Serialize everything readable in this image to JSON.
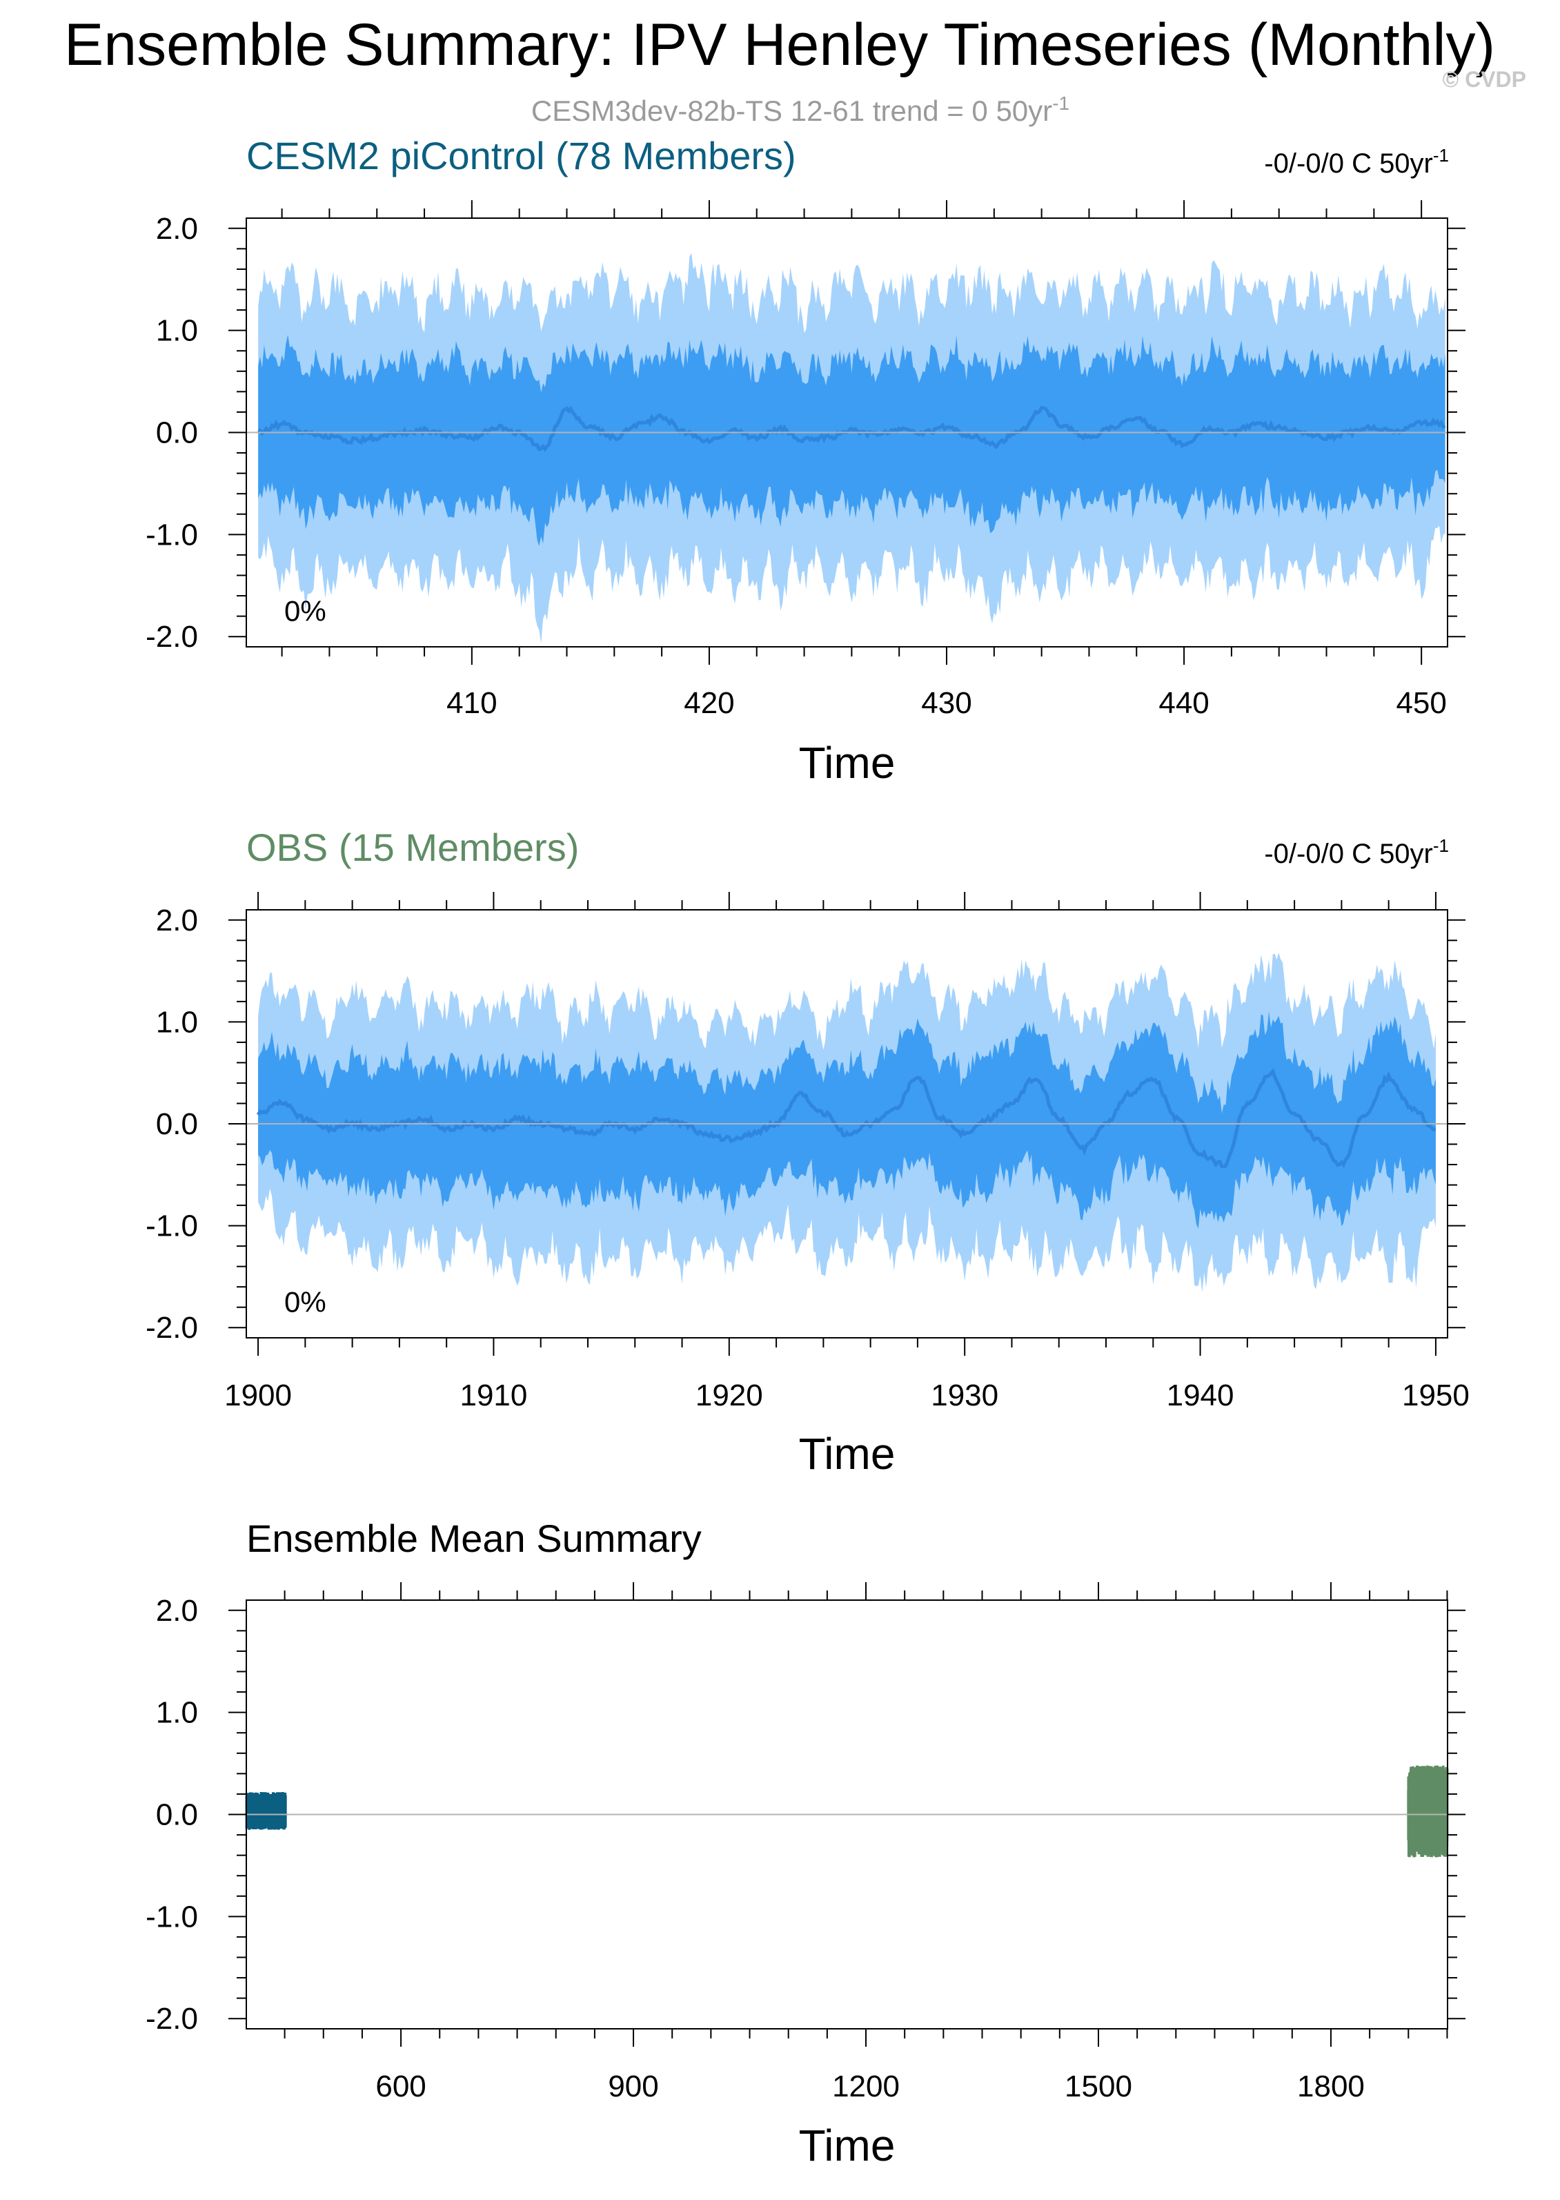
{
  "figure": {
    "title": "Ensemble Summary: IPV Henley Timeseries (Monthly)",
    "watermark": "© CVDP",
    "subtitle": "CESM3dev-82b-TS 12-61 trend = 0 50yr",
    "subtitle_sup": "-1"
  },
  "colors": {
    "band_outer": "#a6d3fb",
    "band_inner": "#3d9df2",
    "mean_line": "#2f86de",
    "cesm_color": "#0b5f80",
    "obs_color": "#5f8c64",
    "zero_line": "#b3b3b3",
    "axis": "#000000",
    "subtitle": "#9a9a9a",
    "watermark": "#c8c8c8"
  },
  "chart_data": [
    {
      "type": "area",
      "id": "cesm",
      "title": "CESM2 piControl (78 Members)",
      "trend_label": "-0/-0/0 C 50yr",
      "trend_sup": "-1",
      "percent_label": "0%",
      "xlabel": "Time",
      "ylabel": "",
      "xlim": [
        400.5,
        451.1
      ],
      "ylim": [
        -2.1,
        2.1
      ],
      "xticks": [
        410,
        420,
        430,
        440,
        450
      ],
      "xtick_labels": [
        "410",
        "420",
        "430",
        "440",
        "450"
      ],
      "yticks": [
        -2.0,
        -1.0,
        0.0,
        1.0,
        2.0
      ],
      "ytick_labels": [
        "-2.0",
        "-1.0",
        "0.0",
        "1.0",
        "2.0"
      ],
      "series": [
        {
          "name": "",
          "role": "ensemble mean (Jan)",
          "x": [
            401,
            402,
            403,
            404,
            405,
            406,
            407,
            408,
            409,
            410,
            411,
            412,
            413,
            414,
            415,
            416,
            417,
            418,
            419,
            420,
            421,
            422,
            423,
            424,
            425,
            426,
            427,
            428,
            429,
            430,
            431,
            432,
            433,
            434,
            435,
            436,
            437,
            438,
            439,
            440,
            441,
            442,
            443,
            444,
            445,
            446,
            447,
            448,
            449,
            450,
            451
          ],
          "values": [
            0.0,
            0.08,
            0.0,
            -0.05,
            -0.08,
            -0.05,
            0.0,
            0.02,
            -0.03,
            -0.05,
            0.05,
            0.0,
            -0.15,
            0.22,
            0.05,
            -0.05,
            0.08,
            0.15,
            0.0,
            -0.08,
            0.02,
            -0.05,
            0.03,
            -0.07,
            -0.05,
            0.02,
            -0.02,
            0.03,
            0.0,
            0.05,
            -0.03,
            -0.12,
            0.0,
            0.22,
            0.05,
            -0.05,
            0.05,
            0.15,
            0.0,
            -0.12,
            0.03,
            0.0,
            0.08,
            0.05,
            0.0,
            -0.05,
            0.0,
            0.05,
            0.0,
            0.1,
            0.08
          ]
        },
        {
          "name": "",
          "role": "ensemble max (Jan)",
          "x": [
            401,
            402,
            403,
            404,
            405,
            406,
            407,
            408,
            409,
            410,
            411,
            412,
            413,
            414,
            415,
            416,
            417,
            418,
            419,
            420,
            421,
            422,
            423,
            424,
            425,
            426,
            427,
            428,
            429,
            430,
            431,
            432,
            433,
            434,
            435,
            436,
            437,
            438,
            439,
            440,
            441,
            442,
            443,
            444,
            445,
            446,
            447,
            448,
            449,
            450,
            451
          ],
          "values": [
            1.5,
            1.62,
            1.45,
            1.55,
            1.3,
            1.5,
            1.55,
            1.35,
            1.6,
            1.45,
            1.35,
            1.55,
            1.3,
            1.45,
            1.6,
            1.55,
            1.45,
            1.5,
            1.7,
            1.6,
            1.55,
            1.4,
            1.6,
            1.35,
            1.5,
            1.6,
            1.4,
            1.55,
            1.45,
            1.5,
            1.6,
            1.5,
            1.55,
            1.45,
            1.55,
            1.45,
            1.5,
            1.55,
            1.45,
            1.4,
            1.6,
            1.5,
            1.55,
            1.4,
            1.5,
            1.45,
            1.4,
            1.55,
            1.5,
            1.3,
            1.45
          ]
        },
        {
          "name": "",
          "role": "ensemble min (Jan)",
          "x": [
            401,
            402,
            403,
            404,
            405,
            406,
            407,
            408,
            409,
            410,
            411,
            412,
            413,
            414,
            415,
            416,
            417,
            418,
            419,
            420,
            421,
            422,
            423,
            424,
            425,
            426,
            427,
            428,
            429,
            430,
            431,
            432,
            433,
            434,
            435,
            436,
            437,
            438,
            439,
            440,
            441,
            442,
            443,
            444,
            445,
            446,
            447,
            448,
            449,
            450,
            451
          ],
          "values": [
            -1.2,
            -1.5,
            -1.6,
            -1.55,
            -1.4,
            -1.5,
            -1.45,
            -1.55,
            -1.5,
            -1.45,
            -1.55,
            -1.6,
            -1.95,
            -1.5,
            -1.55,
            -1.45,
            -1.5,
            -1.55,
            -1.4,
            -1.5,
            -1.55,
            -1.55,
            -1.65,
            -1.45,
            -1.5,
            -1.55,
            -1.5,
            -1.45,
            -1.6,
            -1.45,
            -1.55,
            -1.85,
            -1.5,
            -1.6,
            -1.55,
            -1.45,
            -1.55,
            -1.5,
            -1.4,
            -1.5,
            -1.45,
            -1.55,
            -1.55,
            -1.5,
            -1.45,
            -1.5,
            -1.45,
            -1.4,
            -1.35,
            -1.5,
            -1.0
          ]
        }
      ]
    },
    {
      "type": "area",
      "id": "obs",
      "title": "OBS (15 Members)",
      "trend_label": "-0/-0/0 C 50yr",
      "trend_sup": "-1",
      "percent_label": "0%",
      "xlabel": "Time",
      "ylabel": "",
      "xlim": [
        1899.5,
        1950.5
      ],
      "ylim": [
        -2.1,
        2.1
      ],
      "xticks": [
        1900,
        1910,
        1920,
        1930,
        1940,
        1950
      ],
      "xtick_labels": [
        "1900",
        "1910",
        "1920",
        "1930",
        "1940",
        "1950"
      ],
      "yticks": [
        -2.0,
        -1.0,
        0.0,
        1.0,
        2.0
      ],
      "ytick_labels": [
        "-2.0",
        "-1.0",
        "0.0",
        "1.0",
        "2.0"
      ],
      "series": [
        {
          "name": "",
          "role": "ensemble mean (Jan)",
          "x": [
            1900,
            1901,
            1902,
            1903,
            1904,
            1905,
            1906,
            1907,
            1908,
            1909,
            1910,
            1911,
            1912,
            1913,
            1914,
            1915,
            1916,
            1917,
            1918,
            1919,
            1920,
            1921,
            1922,
            1923,
            1924,
            1925,
            1926,
            1927,
            1928,
            1929,
            1930,
            1931,
            1932,
            1933,
            1934,
            1935,
            1936,
            1937,
            1938,
            1939,
            1940,
            1941,
            1942,
            1943,
            1944,
            1945,
            1946,
            1947,
            1948,
            1949,
            1950
          ],
          "values": [
            0.1,
            0.2,
            0.05,
            -0.05,
            0.0,
            -0.05,
            0.0,
            0.05,
            -0.05,
            0.0,
            -0.05,
            0.05,
            0.0,
            -0.05,
            -0.1,
            0.0,
            -0.05,
            0.05,
            0.0,
            -0.1,
            -0.15,
            -0.1,
            0.0,
            0.3,
            0.1,
            -0.1,
            0.0,
            0.15,
            0.45,
            0.05,
            -0.1,
            0.05,
            0.2,
            0.45,
            0.05,
            -0.25,
            0.0,
            0.3,
            0.45,
            0.05,
            -0.3,
            -0.4,
            0.2,
            0.5,
            0.1,
            -0.15,
            -0.4,
            0.1,
            0.45,
            0.15,
            -0.05
          ]
        },
        {
          "name": "",
          "role": "ensemble max (Jan)",
          "x": [
            1900,
            1901,
            1902,
            1903,
            1904,
            1905,
            1906,
            1907,
            1908,
            1909,
            1910,
            1911,
            1912,
            1913,
            1914,
            1915,
            1916,
            1917,
            1918,
            1919,
            1920,
            1921,
            1922,
            1923,
            1924,
            1925,
            1926,
            1927,
            1928,
            1929,
            1930,
            1931,
            1932,
            1933,
            1934,
            1935,
            1936,
            1937,
            1938,
            1939,
            1940,
            1941,
            1942,
            1943,
            1944,
            1945,
            1946,
            1947,
            1948,
            1949,
            1950
          ],
          "values": [
            1.35,
            1.45,
            1.3,
            1.1,
            1.45,
            1.2,
            1.4,
            1.25,
            1.3,
            1.15,
            1.3,
            1.2,
            1.4,
            1.1,
            1.35,
            1.2,
            1.3,
            1.1,
            1.25,
            1.0,
            1.2,
            1.0,
            1.15,
            1.3,
            1.0,
            1.4,
            1.2,
            1.45,
            1.6,
            1.3,
            1.2,
            1.4,
            1.5,
            1.6,
            1.3,
            1.1,
            1.2,
            1.45,
            1.55,
            1.3,
            1.1,
            1.2,
            1.45,
            1.7,
            1.3,
            1.2,
            1.2,
            1.5,
            1.6,
            1.3,
            1.0
          ]
        },
        {
          "name": "",
          "role": "ensemble min (Jan)",
          "x": [
            1900,
            1901,
            1902,
            1903,
            1904,
            1905,
            1906,
            1907,
            1908,
            1909,
            1910,
            1911,
            1912,
            1913,
            1914,
            1915,
            1916,
            1917,
            1918,
            1919,
            1920,
            1921,
            1922,
            1923,
            1924,
            1925,
            1926,
            1927,
            1928,
            1929,
            1930,
            1931,
            1932,
            1933,
            1934,
            1935,
            1936,
            1937,
            1938,
            1939,
            1940,
            1941,
            1942,
            1943,
            1944,
            1945,
            1946,
            1947,
            1948,
            1949,
            1950
          ],
          "values": [
            -0.8,
            -1.1,
            -1.2,
            -1.15,
            -1.3,
            -1.4,
            -1.35,
            -1.2,
            -1.4,
            -1.2,
            -1.45,
            -1.55,
            -1.35,
            -1.45,
            -1.5,
            -1.4,
            -1.45,
            -1.3,
            -1.45,
            -1.25,
            -1.45,
            -1.3,
            -1.1,
            -1.3,
            -1.45,
            -1.35,
            -1.15,
            -1.4,
            -1.25,
            -1.3,
            -1.45,
            -1.4,
            -1.25,
            -1.4,
            -1.45,
            -1.55,
            -1.35,
            -1.3,
            -1.45,
            -1.4,
            -1.6,
            -1.55,
            -1.3,
            -1.4,
            -1.4,
            -1.55,
            -1.5,
            -1.35,
            -1.45,
            -1.55,
            -1.0
          ]
        }
      ]
    },
    {
      "type": "line",
      "id": "ensmean",
      "title": "Ensemble Mean Summary",
      "xlabel": "Time",
      "ylabel": "",
      "xlim": [
        400.5,
        1950.5
      ],
      "ylim": [
        -2.1,
        2.1
      ],
      "xticks": [
        600,
        900,
        1200,
        1500,
        1800
      ],
      "xtick_labels": [
        "600",
        "900",
        "1200",
        "1500",
        "1800"
      ],
      "yticks": [
        -2.0,
        -1.0,
        0.0,
        1.0,
        2.0
      ],
      "ytick_labels": [
        "-2.0",
        "-1.0",
        "0.0",
        "1.0",
        "2.0"
      ],
      "series": [
        {
          "name": "CESM2 piControl",
          "x": [
            401,
            451
          ],
          "lower": -0.15,
          "upper": 0.22
        },
        {
          "name": "OBS",
          "x": [
            1900,
            1950
          ],
          "lower": -0.42,
          "upper": 0.48
        }
      ]
    }
  ]
}
